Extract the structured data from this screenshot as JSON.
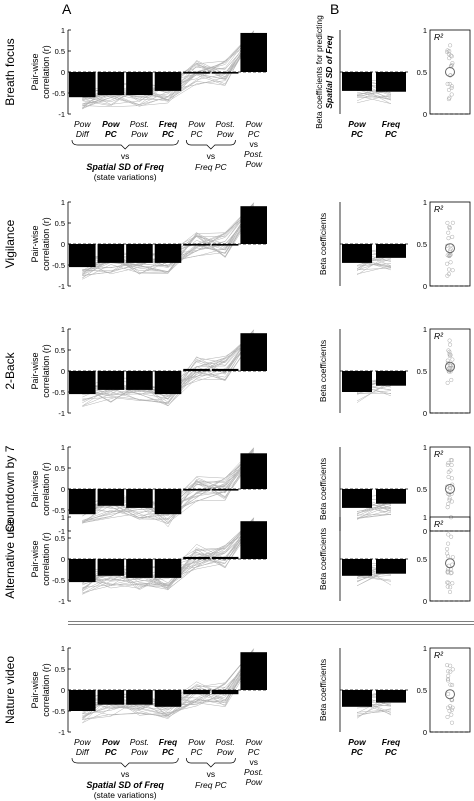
{
  "panel_labels": {
    "A": "A",
    "B": "B"
  },
  "axis_a": {
    "ylabel_line1": "Pair-wise",
    "ylabel_line2": "correlation (r)",
    "ticks": [
      "1",
      "0.5",
      "0",
      "-0.5",
      "-1"
    ]
  },
  "axis_b": {
    "ylabel_first_line1": "Beta coefficients for predicting",
    "ylabel_first_line2": "Spatial SD of Freq",
    "ylabel": "Beta coefficients"
  },
  "axis_c": {
    "r2_label": "R²",
    "ticks": [
      "1",
      "0.5",
      "0"
    ]
  },
  "bottom_labels": {
    "a_categories": [
      [
        "Pow",
        "Diff"
      ],
      [
        "Pow",
        "PC"
      ],
      [
        "Post.",
        "Pow"
      ],
      [
        "Freq",
        "PC"
      ],
      [
        "Pow",
        "PC"
      ],
      [
        "Post.",
        "Pow"
      ],
      [
        "Pow",
        "PC"
      ]
    ],
    "a_third_extra": [
      "vs",
      "Post.",
      "Pow"
    ],
    "a_group1": [
      "vs",
      "Spatial SD of Freq",
      "(state variations)"
    ],
    "a_group2": [
      "vs",
      "Freq PC"
    ],
    "b_categories": [
      [
        "Pow",
        "PC"
      ],
      [
        "Freq",
        "PC"
      ]
    ]
  },
  "chart_data": [
    {
      "type": "bar",
      "row_label": "Breath focus",
      "categories": [
        "Pow Diff",
        "Pow PC",
        "Post. Pow",
        "Freq PC",
        "Pow PC vs Freq PC",
        "Post. Pow vs Freq PC",
        "Pow PC vs Post. Pow"
      ],
      "values": [
        -0.6,
        -0.55,
        -0.55,
        -0.45,
        -0.02,
        -0.02,
        0.93
      ],
      "ylim": [
        -1,
        1
      ],
      "beta": {
        "categories": [
          "Pow PC",
          "Freq PC"
        ],
        "values": [
          -0.45,
          -0.47
        ]
      },
      "r2": 0.5
    },
    {
      "type": "bar",
      "row_label": "Vigilance",
      "categories": [
        "Pow Diff",
        "Pow PC",
        "Post. Pow",
        "Freq PC",
        "Pow PC vs Freq PC",
        "Post. Pow vs Freq PC",
        "Pow PC vs Post. Pow"
      ],
      "values": [
        -0.55,
        -0.45,
        -0.45,
        -0.45,
        0.0,
        -0.02,
        0.9
      ],
      "ylim": [
        -1,
        1
      ],
      "beta": {
        "categories": [
          "Pow PC",
          "Freq PC"
        ],
        "values": [
          -0.45,
          -0.33
        ]
      },
      "r2": 0.45
    },
    {
      "type": "bar",
      "row_label": "2-Back",
      "categories": [
        "Pow Diff",
        "Pow PC",
        "Post. Pow",
        "Freq PC",
        "Pow PC vs Freq PC",
        "Post. Pow vs Freq PC",
        "Pow PC vs Post. Pow"
      ],
      "values": [
        -0.55,
        -0.45,
        -0.45,
        -0.55,
        0.05,
        0.05,
        0.9
      ],
      "ylim": [
        -1,
        1
      ],
      "beta": {
        "categories": [
          "Pow PC",
          "Freq PC"
        ],
        "values": [
          -0.5,
          -0.35
        ]
      },
      "r2": 0.55
    },
    {
      "type": "bar",
      "row_label": "Countdown by 7",
      "categories": [
        "Pow Diff",
        "Pow PC",
        "Post. Pow",
        "Freq PC",
        "Pow PC vs Freq PC",
        "Post. Pow vs Freq PC",
        "Pow PC vs Post. Pow"
      ],
      "values": [
        -0.6,
        -0.4,
        -0.45,
        -0.6,
        0.0,
        0.0,
        0.85
      ],
      "ylim": [
        -1,
        1
      ],
      "beta": {
        "categories": [
          "Pow PC",
          "Freq PC"
        ],
        "values": [
          -0.45,
          -0.35
        ]
      },
      "r2": 0.5
    },
    {
      "type": "bar",
      "row_label": "Alternative use",
      "categories": [
        "Pow Diff",
        "Pow PC",
        "Post. Pow",
        "Freq PC",
        "Pow PC vs Freq PC",
        "Post. Pow vs Freq PC",
        "Pow PC vs Post. Pow"
      ],
      "values": [
        -0.55,
        -0.4,
        -0.45,
        -0.45,
        0.05,
        0.05,
        0.9
      ],
      "ylim": [
        -1,
        1
      ],
      "beta": {
        "categories": [
          "Pow PC",
          "Freq PC"
        ],
        "values": [
          -0.4,
          -0.35
        ]
      },
      "r2": 0.45
    },
    {
      "type": "bar",
      "row_label": "Nature video",
      "categories": [
        "Pow Diff",
        "Pow PC",
        "Post. Pow",
        "Freq PC",
        "Pow PC vs Freq PC",
        "Post. Pow vs Freq PC",
        "Pow PC vs Post. Pow"
      ],
      "values": [
        -0.5,
        -0.35,
        -0.35,
        -0.4,
        -0.1,
        -0.1,
        0.9
      ],
      "ylim": [
        -1,
        1
      ],
      "beta": {
        "categories": [
          "Pow PC",
          "Freq PC"
        ],
        "values": [
          -0.4,
          -0.3
        ]
      },
      "r2": 0.45
    }
  ]
}
